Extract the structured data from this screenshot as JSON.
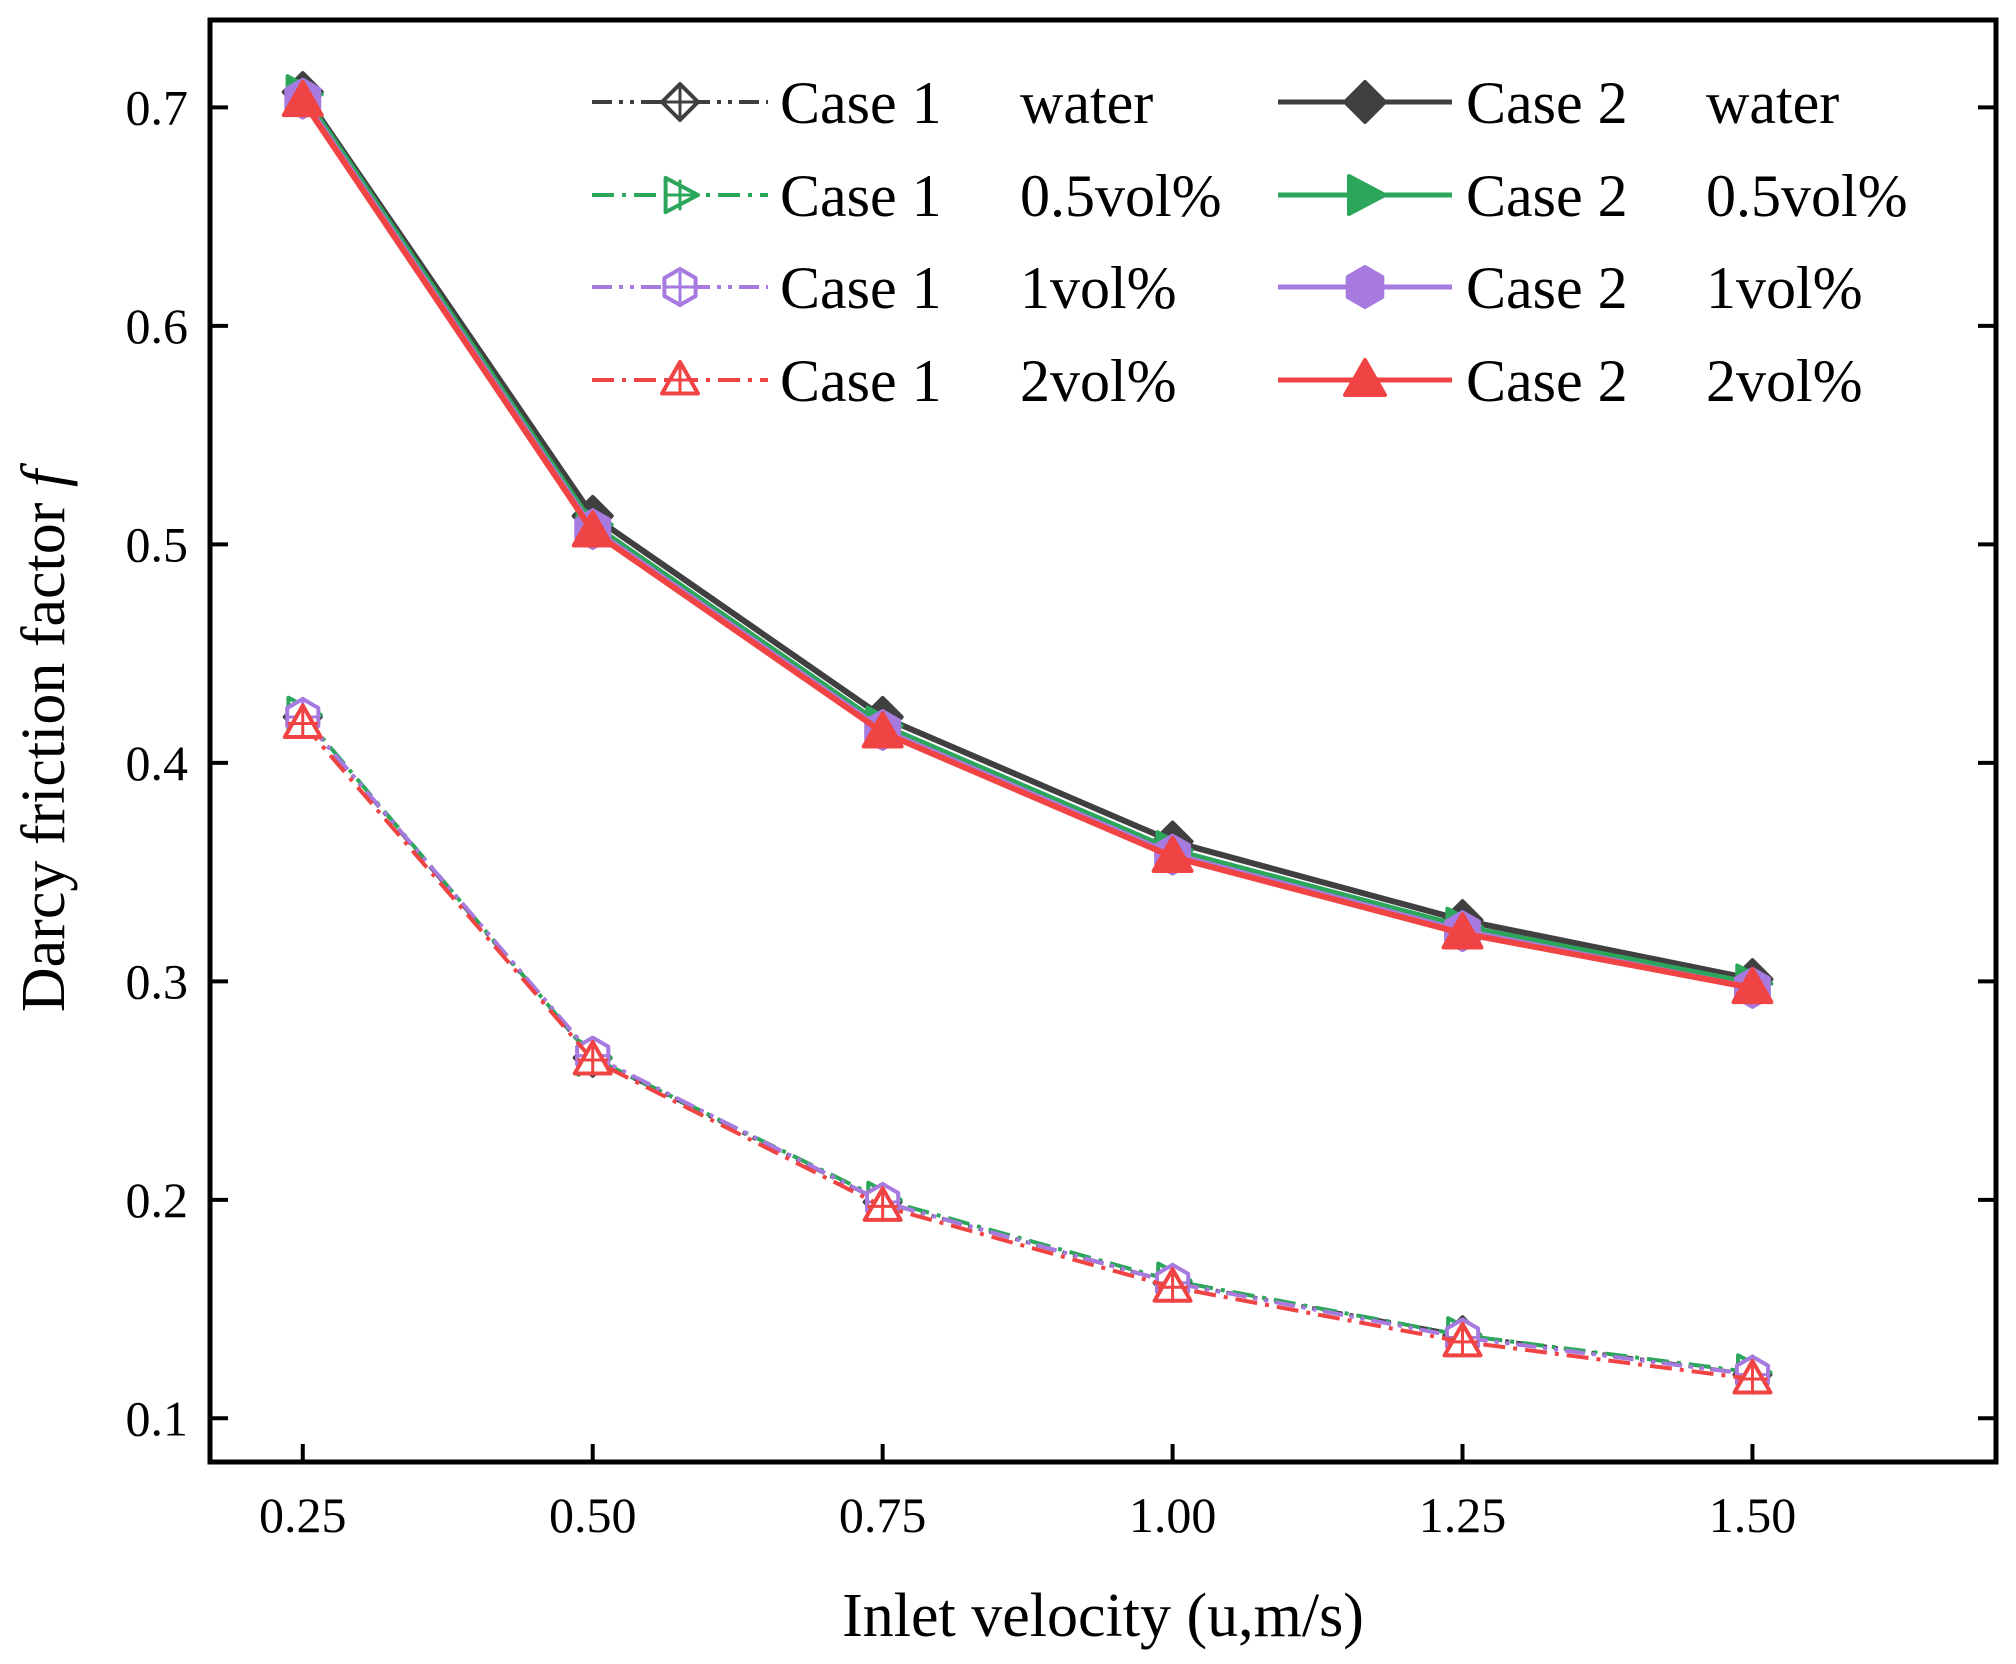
{
  "chart_data": {
    "type": "line",
    "xlabel": "Inlet velocity (u,m/s)",
    "ylabel": "Darcy friction factor ",
    "ylabel_symbol": "f",
    "xlim": [
      0.17,
      1.71
    ],
    "ylim": [
      0.08,
      0.74
    ],
    "x_ticks": [
      0.25,
      0.5,
      0.75,
      1.0,
      1.25,
      1.5
    ],
    "x_tick_labels": [
      "0.25",
      "0.50",
      "0.75",
      "1.00",
      "1.25",
      "1.50"
    ],
    "y_ticks": [
      0.1,
      0.2,
      0.3,
      0.4,
      0.5,
      0.6,
      0.7
    ],
    "y_tick_labels": [
      "0.1",
      "0.2",
      "0.3",
      "0.4",
      "0.5",
      "0.6",
      "0.7"
    ],
    "grid": false,
    "legend_position": "top-right",
    "x": [
      0.25,
      0.5,
      0.75,
      1.0,
      1.25,
      1.5
    ],
    "series": [
      {
        "name": "Case 1  water",
        "label_case": "Case 1",
        "label_fluid": "water",
        "color": "#404040",
        "dash": "dashdotdot",
        "marker": "diamond",
        "filled": false,
        "values": [
          0.421,
          0.265,
          0.199,
          0.162,
          0.138,
          0.12
        ]
      },
      {
        "name": "Case 1  0.5vol%",
        "label_case": "Case 1",
        "label_fluid": "0.5vol%",
        "color": "#2ca65a",
        "dash": "dashdot",
        "marker": "triangle-right",
        "filled": false,
        "values": [
          0.422,
          0.265,
          0.2,
          0.163,
          0.138,
          0.121
        ]
      },
      {
        "name": "Case 1   1vol%",
        "label_case": "Case 1",
        "label_fluid": "1vol%",
        "color": "#a77ae0",
        "dash": "dashdotdot",
        "marker": "hexagon",
        "filled": false,
        "values": [
          0.421,
          0.266,
          0.199,
          0.162,
          0.137,
          0.12
        ]
      },
      {
        "name": "Case 1   2vol%",
        "label_case": "Case 1",
        "label_fluid": "2vol%",
        "color": "#f04444",
        "dash": "dashdot",
        "marker": "triangle-up",
        "filled": false,
        "values": [
          0.418,
          0.264,
          0.197,
          0.16,
          0.135,
          0.118
        ]
      },
      {
        "name": "Case 2  water",
        "label_case": "Case 2",
        "label_fluid": "water",
        "color": "#404040",
        "dash": "solid",
        "marker": "diamond",
        "filled": true,
        "values": [
          0.707,
          0.513,
          0.421,
          0.364,
          0.328,
          0.301
        ]
      },
      {
        "name": "Case 2  0.5vol%",
        "label_case": "Case 2",
        "label_fluid": "0.5vol%",
        "color": "#2ca65a",
        "dash": "solid",
        "marker": "triangle-right",
        "filled": true,
        "values": [
          0.706,
          0.509,
          0.417,
          0.36,
          0.325,
          0.299
        ]
      },
      {
        "name": "Case 2   1vol%",
        "label_case": "Case 2",
        "label_fluid": "1vol%",
        "color": "#a77ae0",
        "dash": "solid",
        "marker": "hexagon",
        "filled": true,
        "values": [
          0.704,
          0.507,
          0.415,
          0.358,
          0.323,
          0.297
        ]
      },
      {
        "name": "Case 2   2vol%",
        "label_case": "Case 2",
        "label_fluid": "2vol%",
        "color": "#f04444",
        "dash": "solid",
        "marker": "triangle-up",
        "filled": true,
        "values": [
          0.703,
          0.506,
          0.414,
          0.357,
          0.322,
          0.297
        ]
      }
    ]
  }
}
